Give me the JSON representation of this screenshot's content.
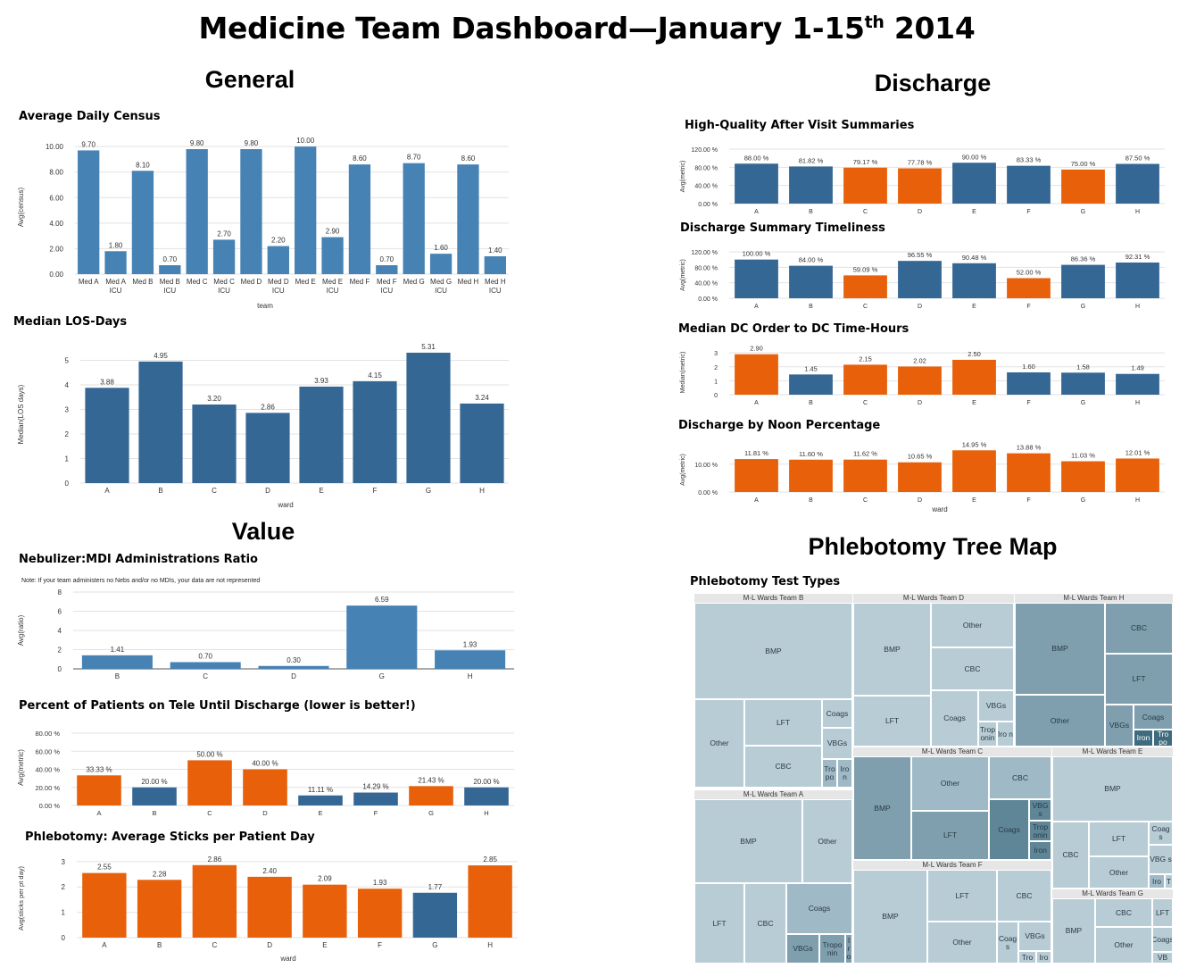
{
  "title": {
    "main": "Medicine Team Dashboard—January 1-15",
    "sup": "th",
    "year": " 2014"
  },
  "sections": {
    "general": "General",
    "discharge": "Discharge",
    "value": "Value",
    "phlebotomy": "Phlebotomy Tree Map"
  },
  "colors": {
    "blue": "#4682b4",
    "dark_blue": "#356795",
    "orange": "#e8600a"
  },
  "chart_data": [
    {
      "id": "census",
      "type": "bar",
      "title": "Average Daily Census",
      "categories": [
        "Med A",
        "Med A ICU",
        "Med B",
        "Med B ICU",
        "Med C",
        "Med C ICU",
        "Med D",
        "Med D ICU",
        "Med E",
        "Med E ICU",
        "Med F",
        "Med F ICU",
        "Med G",
        "Med G ICU",
        "Med H",
        "Med H ICU"
      ],
      "values": [
        9.7,
        1.8,
        8.1,
        0.7,
        9.8,
        2.7,
        9.8,
        2.2,
        10.0,
        2.9,
        8.6,
        0.7,
        8.7,
        1.6,
        8.6,
        1.4
      ],
      "labels": [
        "9.70",
        "1.80",
        "8.10",
        "0.70",
        "9.80",
        "2.70",
        "9.80",
        "2.20",
        "10.00",
        "2.90",
        "8.60",
        "0.70",
        "8.70",
        "1.60",
        "8.60",
        "1.40"
      ],
      "colors": [
        "blue"
      ],
      "yticks": [
        "0.00",
        "2.00",
        "4.00",
        "6.00",
        "8.00",
        "10.00"
      ],
      "ylim": [
        0,
        10.5
      ],
      "xlabel": "team",
      "ylabel": "Avg(census)",
      "grid": true
    },
    {
      "id": "los",
      "type": "bar",
      "title": "Median LOS-Days",
      "categories": [
        "A",
        "B",
        "C",
        "D",
        "E",
        "F",
        "G",
        "H"
      ],
      "values": [
        3.88,
        4.95,
        3.2,
        2.86,
        3.93,
        4.15,
        5.31,
        3.24
      ],
      "labels": [
        "3.88",
        "4.95",
        "3.20",
        "2.86",
        "3.93",
        "4.15",
        "5.31",
        "3.24"
      ],
      "colors": [
        "dark_blue"
      ],
      "yticks": [
        "0",
        "1",
        "2",
        "3",
        "4",
        "5"
      ],
      "ylim": [
        0,
        5.6
      ],
      "xlabel": "ward",
      "ylabel": "Median(LOS days)",
      "grid": true
    },
    {
      "id": "neb",
      "type": "bar",
      "title": "Nebulizer:MDI Administrations Ratio",
      "note": "Note: If your team administers no Nebs and/or no MDIs, your data are not represented",
      "categories": [
        "B",
        "C",
        "D",
        "G",
        "H"
      ],
      "values": [
        1.41,
        0.7,
        0.3,
        6.59,
        1.93
      ],
      "labels": [
        "1.41",
        "0.70",
        "0.30",
        "6.59",
        "1.93"
      ],
      "colors": [
        "blue"
      ],
      "yticks": [
        "0",
        "2",
        "4",
        "6",
        "8"
      ],
      "ylim": [
        0,
        8
      ],
      "xlabel": "",
      "ylabel": "Avg(ratio)",
      "grid": true
    },
    {
      "id": "tele",
      "type": "bar",
      "title": "Percent of Patients on Tele Until Discharge (lower is better!)",
      "categories": [
        "A",
        "B",
        "C",
        "D",
        "E",
        "F",
        "G",
        "H"
      ],
      "values": [
        33.33,
        20.0,
        50.0,
        40.0,
        11.11,
        14.29,
        21.43,
        20.0
      ],
      "labels": [
        "33.33 %",
        "20.00 %",
        "50.00 %",
        "40.00 %",
        "11.11 %",
        "14.29 %",
        "21.43 %",
        "20.00 %"
      ],
      "colors": [
        "orange",
        "dark_blue",
        "orange",
        "orange",
        "dark_blue",
        "dark_blue",
        "orange",
        "dark_blue"
      ],
      "yticks": [
        "0.00 %",
        "20.00 %",
        "40.00 %",
        "60.00 %",
        "80.00 %"
      ],
      "ylim": [
        0,
        84
      ],
      "xlabel": "",
      "ylabel": "Avg(metric)",
      "grid": true
    },
    {
      "id": "sticks",
      "type": "bar",
      "title": "Phlebotomy: Average Sticks per Patient Day",
      "categories": [
        "A",
        "B",
        "C",
        "D",
        "E",
        "F",
        "G",
        "H"
      ],
      "values": [
        2.55,
        2.28,
        2.86,
        2.4,
        2.09,
        1.93,
        1.77,
        2.85
      ],
      "labels": [
        "2.55",
        "2.28",
        "2.86",
        "2.40",
        "2.09",
        "1.93",
        "1.77",
        "2.85"
      ],
      "colors": [
        "orange",
        "orange",
        "orange",
        "orange",
        "orange",
        "orange",
        "dark_blue",
        "orange"
      ],
      "yticks": [
        "0",
        "1",
        "2",
        "3"
      ],
      "ylim": [
        0,
        3.1
      ],
      "xlabel": "ward",
      "ylabel": "Avg(sticks per pt day)",
      "grid": true
    },
    {
      "id": "avs",
      "type": "bar",
      "title": "High-Quality After Visit Summaries",
      "categories": [
        "A",
        "B",
        "C",
        "D",
        "E",
        "F",
        "G",
        "H"
      ],
      "values": [
        88.0,
        81.82,
        79.17,
        77.78,
        90.0,
        83.33,
        75.0,
        87.5
      ],
      "labels": [
        "88.00 %",
        "81.82 %",
        "79.17 %",
        "77.78 %",
        "90.00 %",
        "83.33 %",
        "75.00 %",
        "87.50 %"
      ],
      "colors": [
        "dark_blue",
        "dark_blue",
        "orange",
        "orange",
        "dark_blue",
        "dark_blue",
        "orange",
        "dark_blue"
      ],
      "yticks": [
        "0.00 %",
        "40.00 %",
        "80.00 %",
        "120.00 %"
      ],
      "yticks_minor": [
        "0.00 %",
        "20.00 %",
        "40.00 %",
        "60.00 %",
        "80.00 %",
        "100.00 %",
        "120.00 %"
      ],
      "ylim": [
        0,
        120
      ],
      "xlabel": "",
      "ylabel": "Avg(metric)",
      "grid": true
    },
    {
      "id": "dcsum",
      "type": "bar",
      "title": "Discharge Summary Timeliness",
      "categories": [
        "A",
        "B",
        "C",
        "D",
        "E",
        "F",
        "G",
        "H"
      ],
      "values": [
        100.0,
        84.0,
        59.09,
        96.55,
        90.48,
        52.0,
        86.36,
        92.31
      ],
      "labels": [
        "100.00 %",
        "84.00 %",
        "59.09 %",
        "96.55 %",
        "90.48 %",
        "52.00 %",
        "86.36 %",
        "92.31 %"
      ],
      "colors": [
        "dark_blue",
        "dark_blue",
        "orange",
        "dark_blue",
        "dark_blue",
        "orange",
        "dark_blue",
        "dark_blue"
      ],
      "yticks": [
        "0.00 %",
        "40.00 %",
        "80.00 %",
        "120.00 %"
      ],
      "ylim": [
        0,
        120
      ],
      "xlabel": "",
      "ylabel": "Avg(metric)",
      "grid": true
    },
    {
      "id": "dcorder",
      "type": "bar",
      "title": "Median DC Order to DC Time-Hours",
      "categories": [
        "A",
        "B",
        "C",
        "D",
        "E",
        "F",
        "G",
        "H"
      ],
      "values": [
        2.9,
        1.45,
        2.15,
        2.02,
        2.5,
        1.6,
        1.58,
        1.49
      ],
      "labels": [
        "2.90",
        "1.45",
        "2.15",
        "2.02",
        "2.50",
        "1.60",
        "1.58",
        "1.49"
      ],
      "colors": [
        "orange",
        "dark_blue",
        "orange",
        "orange",
        "orange",
        "dark_blue",
        "dark_blue",
        "dark_blue"
      ],
      "yticks": [
        "0",
        "1",
        "2",
        "3"
      ],
      "ylim": [
        0,
        3.2
      ],
      "xlabel": "",
      "ylabel": "Median(metric)",
      "grid": true
    },
    {
      "id": "noon",
      "type": "bar",
      "title": "Discharge by Noon Percentage",
      "categories": [
        "A",
        "B",
        "C",
        "D",
        "E",
        "F",
        "G",
        "H"
      ],
      "values": [
        11.81,
        11.6,
        11.62,
        10.65,
        14.95,
        13.88,
        11.03,
        12.01
      ],
      "labels": [
        "11.81 %",
        "11.60 %",
        "11.62 %",
        "10.65 %",
        "14.95 %",
        "13.88 %",
        "11.03 %",
        "12.01 %"
      ],
      "colors": [
        "orange"
      ],
      "yticks": [
        "0.00 %",
        "10.00 %"
      ],
      "ylim": [
        0,
        16
      ],
      "xlabel": "ward",
      "ylabel": "Avg(metric)",
      "grid": true
    }
  ],
  "treemap": {
    "title": "Phlebotomy Test Types",
    "colors": {
      "light": "#b8ccd6",
      "mid": "#9fb9c6",
      "dark": "#7f9fae",
      "darker": "#5f8697",
      "darkest": "#3f6b7e"
    },
    "groups": [
      {
        "name": "M-L Wards Team B",
        "cells": [
          "BMP",
          "LFT",
          "Coags",
          "Other",
          "VBGs",
          "CBC",
          "Tro po",
          "Iro n"
        ]
      },
      {
        "name": "M-L Wards Team D",
        "cells": [
          "Other",
          "BMP",
          "CBC",
          "VBGs",
          "Coags",
          "LFT",
          "Trop onin",
          "Iro n"
        ]
      },
      {
        "name": "M-L Wards Team H",
        "cells": [
          "BMP",
          "CBC",
          "LFT",
          "Other",
          "Coags",
          "VBGs",
          "Iron",
          "Tro po"
        ]
      },
      {
        "name": "M-L Wards Team A",
        "cells": [
          "BMP",
          "Other",
          "Coags",
          "LFT",
          "CBC",
          "VBGs",
          "Tropo nin",
          "I r o"
        ]
      },
      {
        "name": "M-L Wards Team C",
        "cells": [
          "Other",
          "CBC",
          "BMP",
          "VBG s",
          "Coags",
          "Trop onin",
          "LFT",
          "Iron"
        ]
      },
      {
        "name": "M-L Wards Team E",
        "cells": [
          "BMP",
          "Coag s",
          "LFT",
          "VBG s",
          "CBC",
          "Other",
          "Iro",
          "T"
        ]
      },
      {
        "name": "M-L Wards Team F",
        "cells": [
          "LFT",
          "CBC",
          "BMP",
          "VBGs",
          "Other",
          "Coag s",
          "Tro",
          "Iro"
        ]
      },
      {
        "name": "M-L Wards Team G",
        "cells": [
          "CBC",
          "LFT",
          "BMP",
          "Coags",
          "Other",
          "VB"
        ]
      }
    ]
  }
}
